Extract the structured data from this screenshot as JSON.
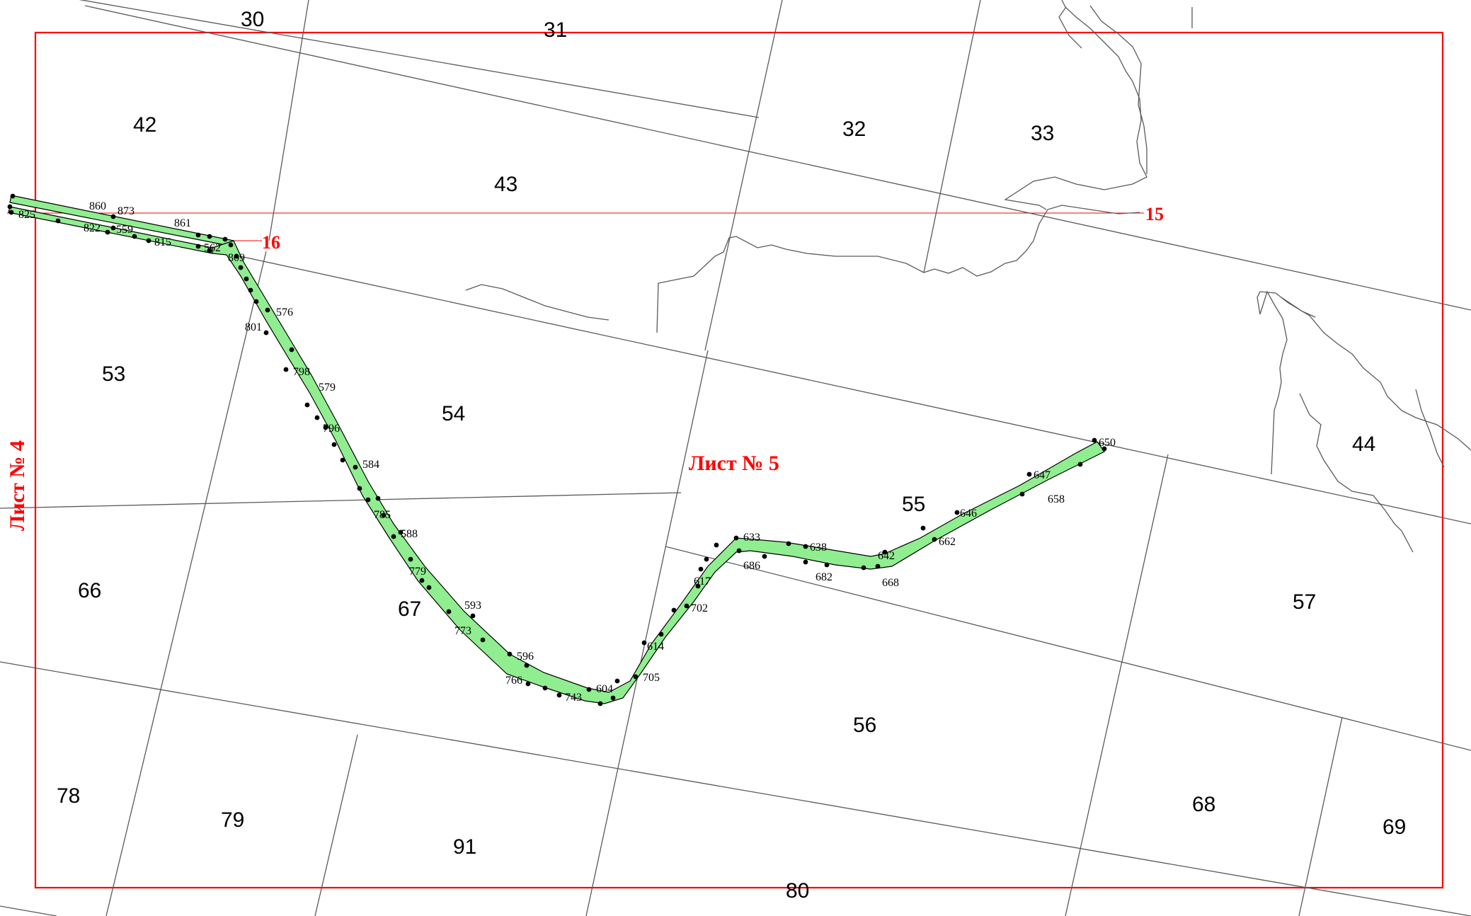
{
  "sheets": {
    "current": "Лист № 5",
    "left": "Лист № 4",
    "right_marker": "15",
    "left_marker": "16"
  },
  "parcels": [
    "30",
    "31",
    "32",
    "33",
    "42",
    "43",
    "44",
    "53",
    "54",
    "55",
    "56",
    "57",
    "66",
    "67",
    "68",
    "69",
    "78",
    "79",
    "80",
    "91"
  ],
  "points": [
    "860",
    "873",
    "825",
    "822",
    "559",
    "861",
    "815",
    "562",
    "809",
    "576",
    "801",
    "798",
    "579",
    "796",
    "584",
    "785",
    "588",
    "779",
    "593",
    "773",
    "596",
    "766",
    "743",
    "604",
    "705",
    "614",
    "702",
    "617",
    "633",
    "686",
    "638",
    "682",
    "642",
    "668",
    "662",
    "646",
    "658",
    "647",
    "650"
  ],
  "colors": {
    "frame": "#ff0000",
    "corridor": "#90ee90",
    "lines": "#5a5a5a"
  }
}
